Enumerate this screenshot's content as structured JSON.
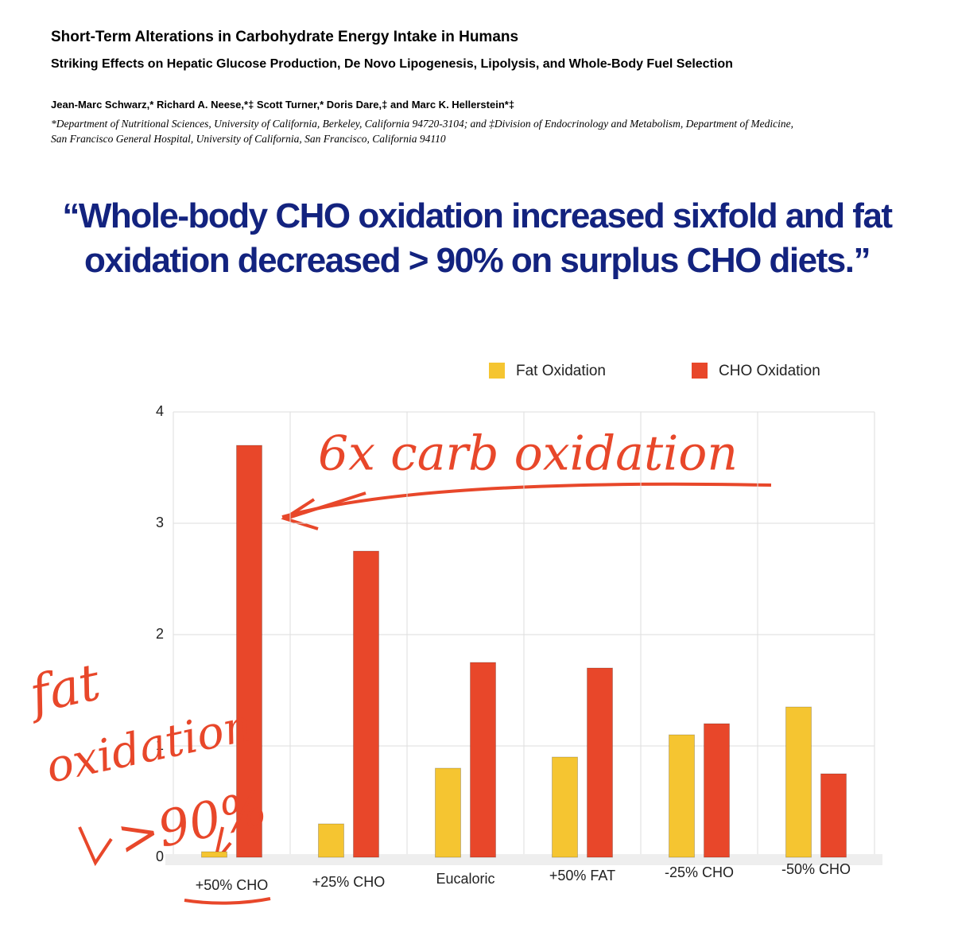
{
  "header": {
    "title": "Short-Term Alterations in Carbohydrate Energy Intake in Humans",
    "subtitle": "Striking Effects on Hepatic Glucose Production, De Novo Lipogenesis, Lipolysis, and Whole-Body Fuel Selection",
    "authors": "Jean-Marc Schwarz,* Richard A. Neese,*‡ Scott Turner,* Doris Dare,‡ and Marc K. Hellerstein*‡",
    "affiliation": "*Department of Nutritional Sciences, University of California, Berkeley, California 94720-3104; and ‡Division of Endocrinology and Metabolism, Department of Medicine, San Francisco General Hospital, University of California, San Francisco, California 94110"
  },
  "quote": "“Whole-body CHO oxidation increased sixfold and fat oxidation decreased > 90% on surplus CHO diets.”",
  "chart_data": {
    "type": "bar",
    "categories": [
      "+50% CHO",
      "+25% CHO",
      "Eucaloric",
      "+50% FAT",
      "-25% CHO",
      "-50% CHO"
    ],
    "series": [
      {
        "name": "Fat Oxidation",
        "color": "#f5c531",
        "values": [
          0.05,
          0.3,
          0.8,
          0.9,
          1.1,
          1.35
        ]
      },
      {
        "name": "CHO Oxidation",
        "color": "#e8472a",
        "values": [
          3.7,
          2.75,
          1.75,
          1.7,
          1.2,
          0.75
        ]
      }
    ],
    "ylim": [
      0,
      4
    ],
    "yticks": [
      0,
      1,
      2,
      3,
      4
    ],
    "grid": true,
    "legend": "top-right",
    "annotations": [
      "6x carb oxidation",
      "fat",
      "oxidation",
      ">90%"
    ]
  }
}
